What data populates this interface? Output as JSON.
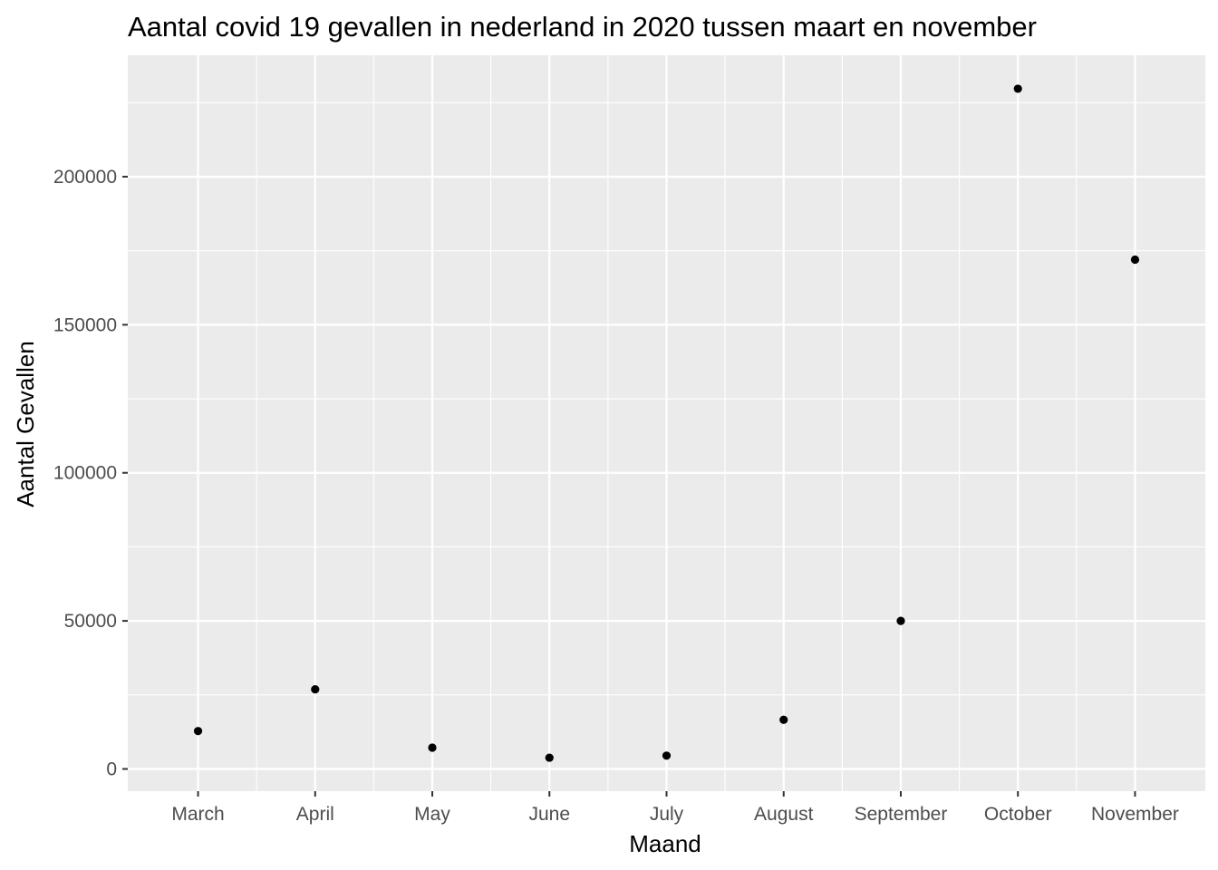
{
  "chart_data": {
    "type": "scatter",
    "title": "Aantal covid 19 gevallen in nederland in 2020 tussen maart en november",
    "xlabel": "Maand",
    "ylabel": "Aantal Gevallen",
    "categories": [
      "March",
      "April",
      "May",
      "June",
      "July",
      "August",
      "September",
      "October",
      "November"
    ],
    "values": [
      12800,
      26900,
      7200,
      3800,
      4500,
      16600,
      50000,
      229700,
      172000
    ],
    "ylim": [
      -7500,
      241000
    ],
    "y_ticks": [
      0,
      50000,
      100000,
      150000,
      200000
    ],
    "y_tick_labels": [
      "0",
      "50000",
      "100000",
      "150000",
      "200000"
    ],
    "grid": true,
    "legend": "none",
    "colors": {
      "panel": "#ebebeb",
      "grid": "#ffffff",
      "point": "#000000",
      "tick_text": "#4d4d4d",
      "tick_mark": "#333333"
    }
  }
}
